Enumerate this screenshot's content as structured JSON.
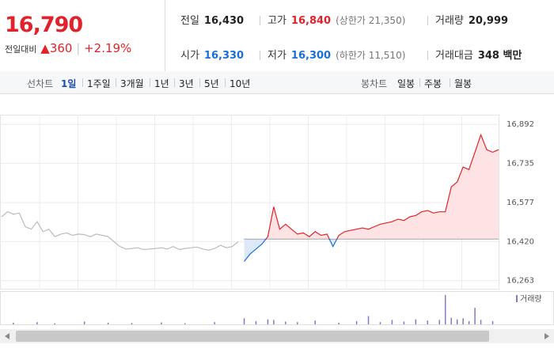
{
  "header": {
    "price": "16,790",
    "change_label": "전일대비",
    "change": "360",
    "rate": "+2.19%"
  },
  "stats": [
    {
      "label": "전일",
      "value": "16,430",
      "color": "#222222"
    },
    {
      "label": "고가",
      "value": "16,840",
      "note": "(상한가 21,350)",
      "color": "#e0232b"
    },
    {
      "label": "거래량",
      "value": "20,999",
      "color": "#222222"
    },
    {
      "label": "시가",
      "value": "16,330",
      "color": "#1a6fd6"
    },
    {
      "label": "저가",
      "value": "16,300",
      "note": "(하한가 11,510)",
      "color": "#1a6fd6"
    },
    {
      "label": "거래대금",
      "value": "348 백만",
      "color": "#222222"
    }
  ],
  "tabs": {
    "line_label": "선차트",
    "line_tabs": [
      "1일",
      "1주일",
      "3개월",
      "1년",
      "3년",
      "5년",
      "10년"
    ],
    "selected": 0,
    "candle_label": "봉차트",
    "candle_tabs": [
      "일봉",
      "주봉",
      "월봉"
    ]
  },
  "chart_data": {
    "type": "line",
    "xlim": [
      0,
      84
    ],
    "ylim": [
      16230,
      16985
    ],
    "yticks": [
      {
        "value": 16263,
        "label": "16,263"
      },
      {
        "value": 16420,
        "label": "16,420"
      },
      {
        "value": 16577,
        "label": "16,577"
      },
      {
        "value": 16735,
        "label": "16,735"
      },
      {
        "value": 16892,
        "label": "16,892"
      }
    ],
    "baseline": 16430,
    "up_color": "#e0232b",
    "down_color": "#1a6fd6",
    "series": [
      {
        "color": "#bbbbbb",
        "x": [
          0,
          1,
          2,
          3,
          4,
          5,
          6,
          7,
          8,
          9,
          10,
          11,
          12,
          13,
          14,
          15,
          16,
          17,
          18,
          19,
          20,
          21,
          22,
          23,
          24,
          25,
          26,
          27,
          28,
          29,
          30,
          31,
          32,
          33,
          34,
          35,
          36,
          37,
          38,
          39,
          40
        ],
        "values": [
          16520,
          16540,
          16530,
          16535,
          16480,
          16470,
          16500,
          16460,
          16470,
          16440,
          16450,
          16455,
          16445,
          16450,
          16448,
          16440,
          16450,
          16445,
          16440,
          16420,
          16400,
          16390,
          16392,
          16395,
          16388,
          16390,
          16392,
          16395,
          16390,
          16400,
          16388,
          16392,
          16395,
          16398,
          16390,
          16385,
          16392,
          16405,
          16395,
          16400,
          16420
        ]
      },
      {
        "color": "baseline-split",
        "x": [
          41,
          42,
          43,
          44,
          45,
          46,
          47,
          48,
          49,
          50,
          51,
          52,
          53,
          54,
          55,
          56,
          57,
          58,
          59,
          60,
          61,
          62,
          63,
          64,
          65,
          66,
          67,
          68,
          69,
          70,
          71,
          72,
          73,
          74,
          75,
          76,
          77,
          78,
          79,
          80,
          81,
          82,
          83,
          84
        ],
        "values": [
          16340,
          16370,
          16390,
          16410,
          16440,
          16560,
          16470,
          16490,
          16470,
          16450,
          16455,
          16440,
          16460,
          16445,
          16450,
          16400,
          16445,
          16460,
          16465,
          16470,
          16475,
          16470,
          16480,
          16490,
          16495,
          16500,
          16510,
          16505,
          16520,
          16525,
          16540,
          16545,
          16535,
          16540,
          16540,
          16640,
          16660,
          16720,
          16710,
          16780,
          16850,
          16790,
          16780,
          16790
        ]
      }
    ],
    "volume": {
      "name": "거래량",
      "color": "#8878c0",
      "ylim": [
        0,
        600
      ],
      "x": [
        2,
        6,
        9,
        14,
        18,
        22,
        27,
        31,
        36,
        41,
        43,
        45,
        46,
        48,
        50,
        53,
        57,
        60,
        62,
        64,
        66,
        68,
        70,
        72,
        74,
        75,
        76,
        77,
        78,
        79,
        80,
        81,
        83
      ],
      "values": [
        30,
        40,
        20,
        50,
        30,
        25,
        35,
        20,
        40,
        110,
        60,
        90,
        80,
        50,
        40,
        70,
        30,
        60,
        150,
        40,
        80,
        50,
        90,
        70,
        80,
        530,
        120,
        90,
        110,
        60,
        300,
        80,
        60
      ]
    }
  }
}
